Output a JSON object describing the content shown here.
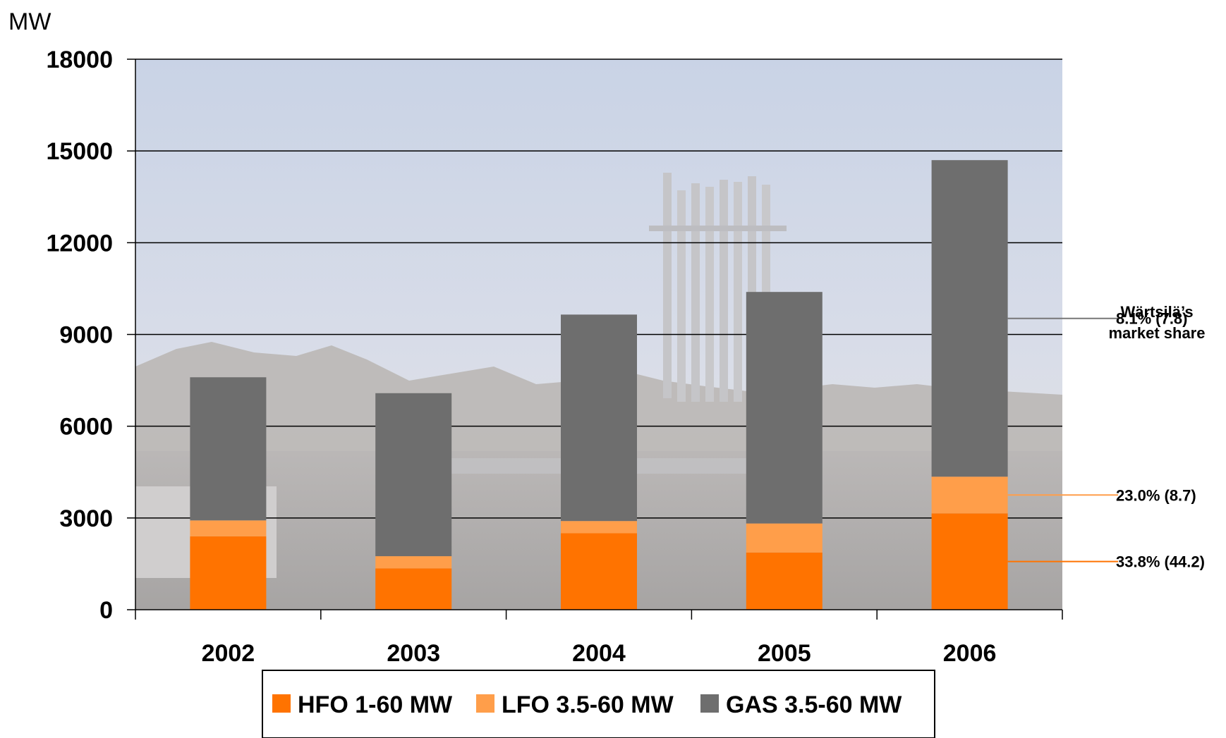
{
  "chart_data": {
    "type": "bar",
    "stacked": true,
    "unit_label": "MW",
    "categories": [
      "2002",
      "2003",
      "2004",
      "2005",
      "2006"
    ],
    "series": [
      {
        "name": "HFO 1-60 MW",
        "color": "#ff7300",
        "values": [
          2400,
          1350,
          2500,
          1870,
          3150
        ]
      },
      {
        "name": "LFO 3.5-60 MW",
        "color": "#ff9e4a",
        "values": [
          520,
          400,
          400,
          950,
          1200
        ]
      },
      {
        "name": "GAS 3.5-60 MW",
        "color": "#6e6e6e",
        "values": [
          4680,
          5330,
          6750,
          7570,
          10350
        ]
      }
    ],
    "ylim": [
      0,
      18000
    ],
    "yticks": [
      0,
      3000,
      6000,
      9000,
      12000,
      15000,
      18000
    ],
    "grid": true,
    "legend_position": "bottom",
    "market_share": {
      "title_line1": "Wärtsilä’s",
      "title_line2": "market share",
      "labels": [
        {
          "series": "GAS 3.5-60 MW",
          "text": "8.1% (7.8)"
        },
        {
          "series": "LFO 3.5-60 MW",
          "text": "23.0% (8.7)"
        },
        {
          "series": "HFO 1-60 MW",
          "text": "33.8% (44.2)"
        }
      ]
    },
    "background": "power-plant-photo"
  }
}
